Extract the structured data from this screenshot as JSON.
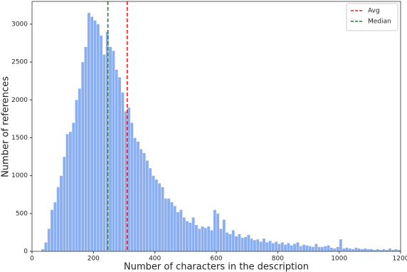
{
  "chart_data": {
    "type": "histogram",
    "xlabel": "Number of characters in the description",
    "ylabel": "Number of references",
    "color": "#8aaef0",
    "bins": [
      30,
      40,
      50,
      60,
      70,
      80,
      90,
      100,
      110,
      120,
      130,
      140,
      150,
      160,
      170,
      180,
      190,
      200,
      210,
      220,
      230,
      240,
      250,
      260,
      270,
      280,
      290,
      300,
      310,
      320,
      330,
      340,
      350,
      360,
      370,
      380,
      390,
      400,
      410,
      420,
      430,
      440,
      450,
      460,
      470,
      480,
      490,
      500,
      510,
      520,
      530,
      540,
      550,
      560,
      570,
      580,
      590,
      600,
      610,
      620,
      630,
      640,
      650,
      660,
      670,
      680,
      690,
      700,
      710,
      720,
      730,
      740,
      750,
      760,
      770,
      780,
      790,
      800,
      810,
      820,
      830,
      840,
      850,
      860,
      870,
      880,
      890,
      900,
      910,
      920,
      930,
      940,
      950,
      960,
      970,
      980,
      990,
      1000,
      1010,
      1020,
      1030,
      1040,
      1050,
      1060,
      1070,
      1080,
      1090,
      1100,
      1110,
      1120,
      1130,
      1140,
      1150,
      1160,
      1170,
      1180,
      1190,
      1200
    ],
    "counts": [
      30,
      120,
      300,
      550,
      650,
      850,
      1000,
      1250,
      1550,
      1580,
      1700,
      2000,
      2150,
      2500,
      2700,
      3150,
      3100,
      3050,
      3000,
      2850,
      2600,
      2900,
      2700,
      2650,
      2400,
      2300,
      2100,
      1850,
      1900,
      1700,
      1500,
      1450,
      1350,
      1300,
      1200,
      1100,
      1000,
      950,
      900,
      850,
      700,
      700,
      650,
      600,
      520,
      550,
      450,
      400,
      380,
      450,
      350,
      300,
      330,
      310,
      330,
      280,
      550,
      500,
      300,
      420,
      250,
      230,
      280,
      200,
      230,
      180,
      190,
      220,
      170,
      150,
      160,
      130,
      170,
      120,
      140,
      110,
      130,
      100,
      120,
      90,
      110,
      80,
      100,
      120,
      70,
      90,
      80,
      70,
      60,
      100,
      60,
      60,
      70,
      80,
      50,
      40,
      60,
      160,
      40,
      50,
      40,
      30,
      50,
      40,
      30,
      40,
      30,
      30,
      20,
      30,
      20,
      30,
      20,
      40,
      20,
      30,
      20
    ],
    "lines": [
      {
        "name": "Avg",
        "value": 310,
        "color": "#d62728"
      },
      {
        "name": "Median",
        "value": 247,
        "color": "#1a7f2e"
      }
    ],
    "legend": "upper right",
    "xlim": [
      0,
      1200
    ],
    "ylim": [
      0,
      3300
    ],
    "xticks": [
      0,
      200,
      400,
      600,
      800,
      1000,
      1200
    ],
    "yticks": [
      0,
      500,
      1000,
      1500,
      2000,
      2500,
      3000
    ]
  }
}
